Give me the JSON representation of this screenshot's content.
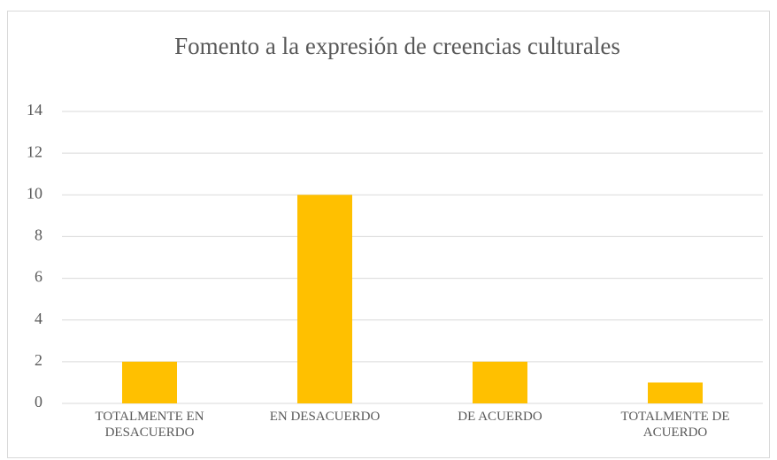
{
  "chart_data": {
    "type": "bar",
    "title": "Fomento a la expresión de creencias culturales",
    "categories": [
      "TOTALMENTE EN DESACUERDO",
      "EN DESACUERDO",
      "DE ACUERDO",
      "TOTALMENTE DE ACUERDO"
    ],
    "values": [
      2,
      10,
      2,
      1
    ],
    "color": "#ffc000",
    "ylim": [
      0,
      14
    ],
    "yticks": [
      0,
      2,
      4,
      6,
      8,
      10,
      12,
      14
    ],
    "grid": true
  }
}
